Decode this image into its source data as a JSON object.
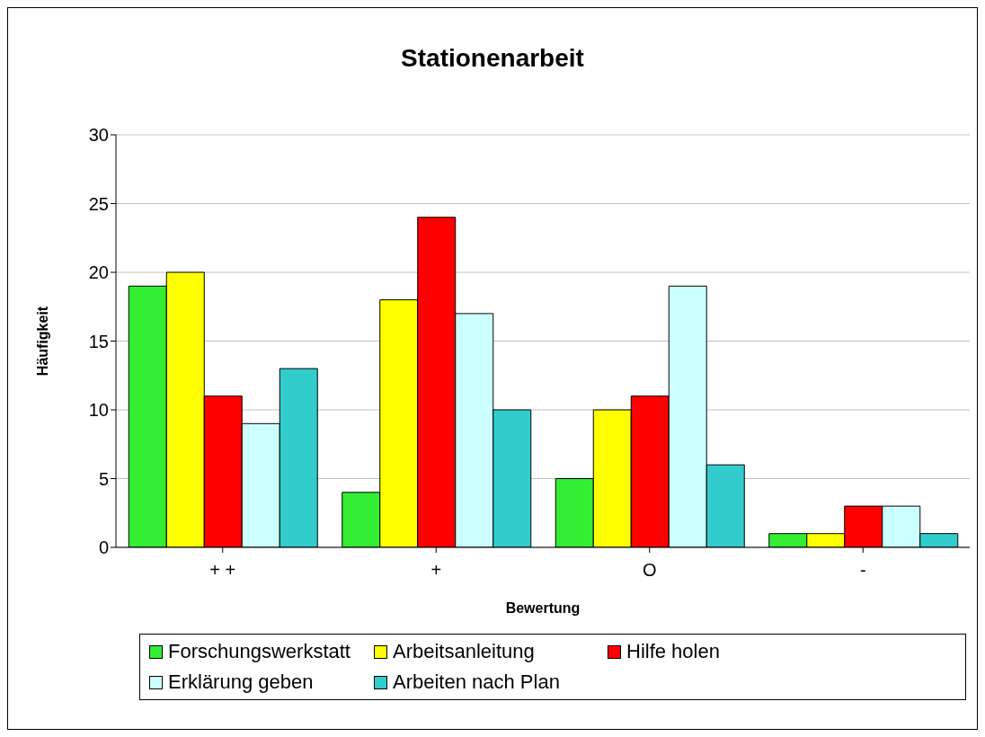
{
  "chart_data": {
    "type": "bar",
    "title": "Stationenarbeit",
    "xlabel": "Bewertung",
    "ylabel": "Häufigkeit",
    "categories": [
      "+ +",
      "+",
      "O",
      "-"
    ],
    "series": [
      {
        "name": "Forschungswerkstatt",
        "color": "#33ee33",
        "values": [
          19,
          4,
          5,
          1
        ]
      },
      {
        "name": "Arbeitsanleitung",
        "color": "#ffff00",
        "values": [
          20,
          18,
          10,
          1
        ]
      },
      {
        "name": "Hilfe holen",
        "color": "#ff0000",
        "values": [
          11,
          24,
          11,
          3
        ]
      },
      {
        "name": "Erklärung geben",
        "color": "#ccffff",
        "values": [
          9,
          17,
          19,
          3
        ]
      },
      {
        "name": "Arbeiten nach Plan",
        "color": "#33cccc",
        "values": [
          13,
          10,
          6,
          1
        ]
      }
    ],
    "ylim": [
      0,
      30
    ],
    "yticks": [
      0,
      5,
      10,
      15,
      20,
      25,
      30
    ],
    "grid": "y",
    "legend": "bottom"
  }
}
